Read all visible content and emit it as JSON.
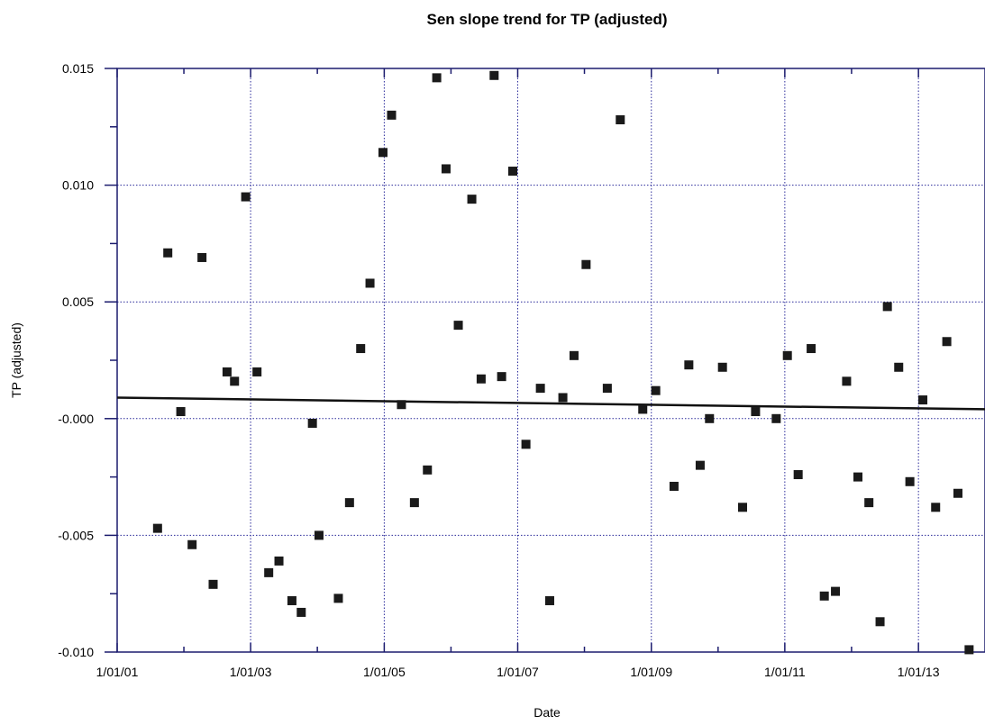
{
  "chart_data": {
    "type": "scatter",
    "title": "Sen slope trend for TP (adjusted)",
    "xlabel": "Date",
    "ylabel": "TP (adjusted)",
    "x_axis": {
      "type": "date",
      "range": [
        "2001-01-01",
        "2013-12-31"
      ],
      "ticks": [
        {
          "date": "2001-01-01",
          "label": "1/01/01"
        },
        {
          "date": "2003-01-01",
          "label": "1/01/03"
        },
        {
          "date": "2005-01-01",
          "label": "1/01/05"
        },
        {
          "date": "2007-01-01",
          "label": "1/01/07"
        },
        {
          "date": "2009-01-01",
          "label": "1/01/09"
        },
        {
          "date": "2011-01-01",
          "label": "1/01/11"
        },
        {
          "date": "2013-01-01",
          "label": "1/01/13"
        }
      ]
    },
    "y_axis": {
      "range": [
        -0.01,
        0.015
      ],
      "ticks": [
        {
          "value": 0.015,
          "label": "0.015"
        },
        {
          "value": 0.01,
          "label": "0.010"
        },
        {
          "value": 0.005,
          "label": "0.005"
        },
        {
          "value": 0.0,
          "label": "-0.000"
        },
        {
          "value": -0.005,
          "label": "-0.005"
        },
        {
          "value": -0.01,
          "label": "-0.010"
        }
      ]
    },
    "grid": true,
    "marker_color": "#1a1a1a",
    "axis_color": "#1c1c6e",
    "grid_color": "#2a2a9a",
    "trend_color": "#111111",
    "trend_line": [
      {
        "x": "2001-01-01",
        "y": 0.0009
      },
      {
        "x": "2013-12-31",
        "y": 0.0004
      }
    ],
    "points": [
      {
        "x": "2001-08-10",
        "y": -0.0047
      },
      {
        "x": "2001-10-05",
        "y": 0.0071
      },
      {
        "x": "2001-12-15",
        "y": 0.0003
      },
      {
        "x": "2002-02-15",
        "y": -0.0054
      },
      {
        "x": "2002-04-10",
        "y": 0.0069
      },
      {
        "x": "2002-06-10",
        "y": -0.0071
      },
      {
        "x": "2002-08-25",
        "y": 0.002
      },
      {
        "x": "2002-10-05",
        "y": 0.0016
      },
      {
        "x": "2002-12-05",
        "y": 0.0095
      },
      {
        "x": "2003-02-05",
        "y": 0.002
      },
      {
        "x": "2003-04-10",
        "y": -0.0066
      },
      {
        "x": "2003-06-05",
        "y": -0.0061
      },
      {
        "x": "2003-08-15",
        "y": -0.0078
      },
      {
        "x": "2003-10-05",
        "y": -0.0083
      },
      {
        "x": "2003-12-05",
        "y": -0.0002
      },
      {
        "x": "2004-01-10",
        "y": -0.005
      },
      {
        "x": "2004-04-25",
        "y": -0.0077
      },
      {
        "x": "2004-06-25",
        "y": -0.0036
      },
      {
        "x": "2004-08-25",
        "y": 0.003
      },
      {
        "x": "2004-10-15",
        "y": 0.0058
      },
      {
        "x": "2004-12-25",
        "y": 0.0114
      },
      {
        "x": "2005-02-10",
        "y": 0.013
      },
      {
        "x": "2005-04-05",
        "y": 0.0006
      },
      {
        "x": "2005-06-15",
        "y": -0.0036
      },
      {
        "x": "2005-08-25",
        "y": -0.0022
      },
      {
        "x": "2005-10-15",
        "y": 0.0146
      },
      {
        "x": "2005-12-05",
        "y": 0.0107
      },
      {
        "x": "2006-02-10",
        "y": 0.004
      },
      {
        "x": "2006-04-25",
        "y": 0.0094
      },
      {
        "x": "2006-06-15",
        "y": 0.0017
      },
      {
        "x": "2006-08-25",
        "y": 0.0147
      },
      {
        "x": "2006-10-05",
        "y": 0.0018
      },
      {
        "x": "2006-12-05",
        "y": 0.0106
      },
      {
        "x": "2007-02-15",
        "y": -0.0011
      },
      {
        "x": "2007-05-05",
        "y": 0.0013
      },
      {
        "x": "2007-06-25",
        "y": -0.0078
      },
      {
        "x": "2007-09-05",
        "y": 0.0009
      },
      {
        "x": "2007-11-05",
        "y": 0.0027
      },
      {
        "x": "2008-01-10",
        "y": 0.0066
      },
      {
        "x": "2008-05-05",
        "y": 0.0013
      },
      {
        "x": "2008-07-15",
        "y": 0.0128
      },
      {
        "x": "2008-11-15",
        "y": 0.0004
      },
      {
        "x": "2009-01-25",
        "y": 0.0012
      },
      {
        "x": "2009-05-05",
        "y": -0.0029
      },
      {
        "x": "2009-07-25",
        "y": 0.0023
      },
      {
        "x": "2009-09-25",
        "y": -0.002
      },
      {
        "x": "2009-11-15",
        "y": -0.0
      },
      {
        "x": "2010-01-25",
        "y": 0.0022
      },
      {
        "x": "2010-05-15",
        "y": -0.0038
      },
      {
        "x": "2010-07-25",
        "y": 0.0003
      },
      {
        "x": "2010-11-15",
        "y": 0.0
      },
      {
        "x": "2011-01-15",
        "y": 0.0027
      },
      {
        "x": "2011-03-15",
        "y": -0.0024
      },
      {
        "x": "2011-05-25",
        "y": 0.003
      },
      {
        "x": "2011-08-05",
        "y": -0.0076
      },
      {
        "x": "2011-10-05",
        "y": -0.0074
      },
      {
        "x": "2011-12-05",
        "y": 0.0016
      },
      {
        "x": "2012-02-05",
        "y": -0.0025
      },
      {
        "x": "2012-04-05",
        "y": -0.0036
      },
      {
        "x": "2012-06-05",
        "y": -0.0087
      },
      {
        "x": "2012-07-15",
        "y": 0.0048
      },
      {
        "x": "2012-09-15",
        "y": 0.0022
      },
      {
        "x": "2012-11-15",
        "y": -0.0027
      },
      {
        "x": "2013-01-25",
        "y": 0.0008
      },
      {
        "x": "2013-04-05",
        "y": -0.0038
      },
      {
        "x": "2013-06-05",
        "y": 0.0033
      },
      {
        "x": "2013-08-05",
        "y": -0.0032
      },
      {
        "x": "2013-10-05",
        "y": -0.0099
      }
    ]
  }
}
